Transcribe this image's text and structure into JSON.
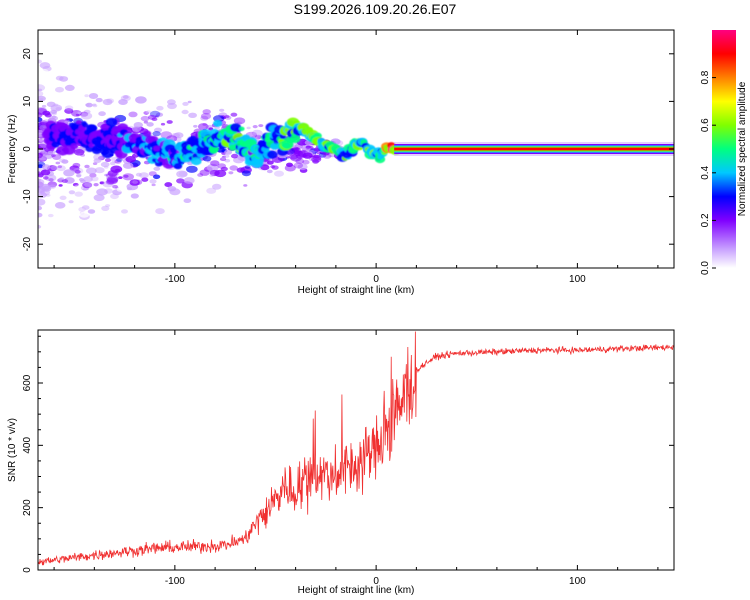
{
  "page": {
    "title": "S199.2026.109.20.26.E07"
  },
  "colors": {
    "snr_line": "#f03030",
    "spectrum_outline": "#8000ff",
    "colormap": [
      "#ffffff",
      "#c8a0ff",
      "#8000ff",
      "#0000ff",
      "#00c8ff",
      "#00ff80",
      "#80ff00",
      "#ffff00",
      "#ff8000",
      "#ff0000",
      "#ff0080"
    ]
  },
  "chart_data": [
    {
      "type": "heatmap",
      "name": "spectrogram",
      "title": "S199.2026.109.20.26.E07",
      "xlabel": "Height of straight line (km)",
      "ylabel": "Frequency (Hz)",
      "xlim": [
        -168,
        148
      ],
      "ylim": [
        -25,
        25
      ],
      "x_ticks": [
        -100,
        0,
        100
      ],
      "x_tick_labels": [
        "-100",
        "0",
        "100"
      ],
      "y_ticks": [
        -20,
        -10,
        0,
        10,
        20
      ],
      "y_tick_labels": [
        "-20",
        "-10",
        "0",
        "10",
        "20"
      ],
      "colorbar": {
        "label": "Normalized spectral amplitude",
        "range": [
          0,
          1
        ],
        "ticks": [
          0.0,
          0.2,
          0.4,
          0.6,
          0.8
        ],
        "tick_labels": [
          "0.0",
          "0.2",
          "0.4",
          "0.6",
          "0.8"
        ]
      },
      "ridge": {
        "x": [
          -145,
          -120,
          -100,
          -85,
          -70,
          -60,
          -50,
          -45,
          -40,
          -35,
          -30,
          -25,
          -20,
          -15,
          -10,
          -6,
          -2,
          0,
          2,
          5,
          8,
          10,
          40,
          80,
          120,
          148
        ],
        "y": [
          3,
          1,
          -1.5,
          1,
          2.5,
          -1,
          2,
          3,
          4.5,
          4,
          2.5,
          0.5,
          0,
          -1.5,
          1.5,
          1,
          -1,
          -1,
          -1.5,
          0,
          0,
          0,
          0,
          0,
          0,
          0
        ],
        "amplitude": [
          0.3,
          0.35,
          0.45,
          0.45,
          0.55,
          0.45,
          0.55,
          0.6,
          0.6,
          0.6,
          0.55,
          0.55,
          0.55,
          0.55,
          0.6,
          0.55,
          0.55,
          0.55,
          0.6,
          0.8,
          0.95,
          0.95,
          0.95,
          0.95,
          0.95,
          0.95
        ]
      }
    },
    {
      "type": "line",
      "name": "snr",
      "xlabel": "Height of straight line (km)",
      "ylabel": "SNR (10 * v/v)",
      "xlim": [
        -168,
        148
      ],
      "ylim": [
        0,
        770
      ],
      "x_ticks": [
        -100,
        0,
        100
      ],
      "x_tick_labels": [
        "-100",
        "0",
        "100"
      ],
      "y_ticks": [
        0,
        200,
        400,
        600
      ],
      "y_tick_labels": [
        "0",
        "200",
        "400",
        "600"
      ],
      "series": [
        {
          "name": "SNR",
          "x": [
            -168,
            -150,
            -130,
            -110,
            -90,
            -75,
            -65,
            -60,
            -55,
            -50,
            -45,
            -40,
            -35,
            -30,
            -25,
            -20,
            -15,
            -12,
            -10,
            -5,
            0,
            5,
            10,
            15,
            20,
            25,
            30,
            40,
            60,
            80,
            100,
            120,
            148
          ],
          "y": [
            25,
            40,
            55,
            70,
            75,
            80,
            100,
            150,
            180,
            230,
            270,
            250,
            300,
            320,
            300,
            310,
            330,
            350,
            320,
            370,
            390,
            430,
            490,
            580,
            640,
            665,
            685,
            695,
            700,
            705,
            705,
            710,
            715
          ]
        }
      ]
    }
  ]
}
